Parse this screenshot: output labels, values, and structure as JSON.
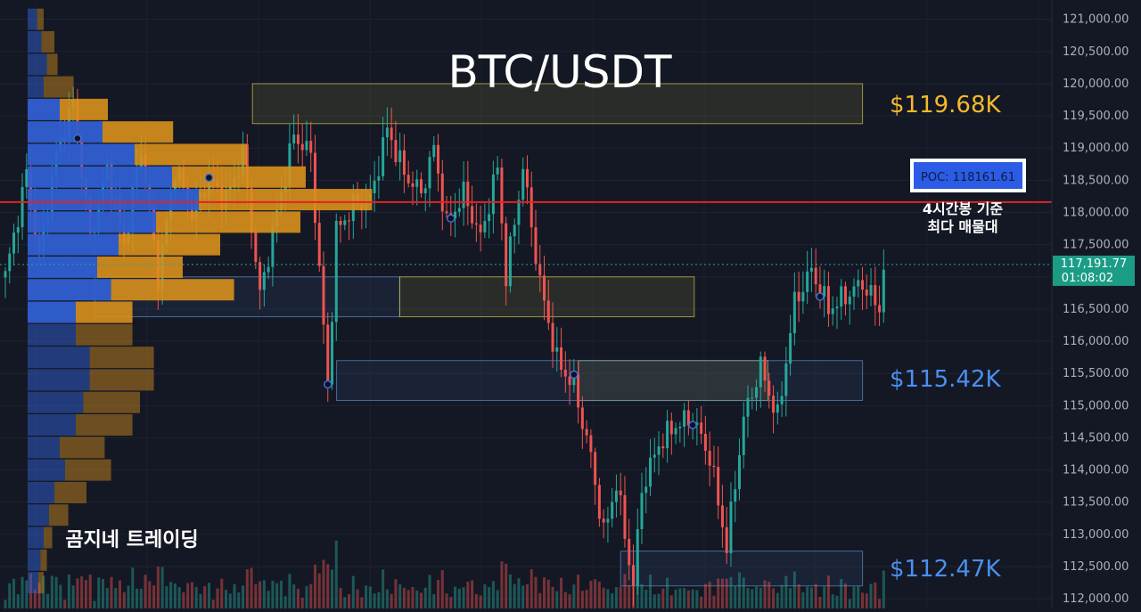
{
  "title": "BTC/USDT",
  "watermark": "곰지네 트레이딩",
  "poc": {
    "label": "POC: 118161.61",
    "value": 118161.61,
    "note_line1": "4시간봉 기준",
    "note_line2": "최다 매물대"
  },
  "current_price": {
    "value": 117191.77,
    "label": "117,191.77",
    "countdown": "01:08:02"
  },
  "levels": [
    {
      "label": "$119.68K",
      "value": 119680,
      "color": "#f5b82e"
    },
    {
      "label": "$115.42K",
      "value": 115420,
      "color": "#4c8ff0"
    },
    {
      "label": "$112.47K",
      "value": 112470,
      "color": "#4c8ff0"
    }
  ],
  "zones": [
    {
      "kind": "supply",
      "y_top": 120000,
      "y_bottom": 119380,
      "x_start": 0.24,
      "x_end": 0.82
    },
    {
      "kind": "demand",
      "y_top": 117000,
      "y_bottom": 116380,
      "x_start": 0.09,
      "x_end": 0.38
    },
    {
      "kind": "supply",
      "y_top": 117000,
      "y_bottom": 116380,
      "x_start": 0.38,
      "x_end": 0.66
    },
    {
      "kind": "supply",
      "y_top": 115700,
      "y_bottom": 115080,
      "x_start": 0.55,
      "x_end": 0.73
    },
    {
      "kind": "demand",
      "y_top": 115700,
      "y_bottom": 115080,
      "x_start": 0.32,
      "x_end": 0.82
    },
    {
      "kind": "demand",
      "y_top": 112740,
      "y_bottom": 112200,
      "x_start": 0.59,
      "x_end": 0.82
    }
  ],
  "colors": {
    "bull": "#26a69a",
    "bear": "#ef5350",
    "poc_line": "#e02424",
    "profile_blue": "#2f5fd1",
    "profile_orange": "#d8901c",
    "background": "#141824"
  },
  "chart_data": {
    "type": "candlestick",
    "title": "BTC/USDT",
    "y_axis": {
      "ylim": [
        111850,
        121300
      ],
      "ticks": [
        121000,
        120500,
        120000,
        119500,
        119000,
        118500,
        118000,
        117500,
        117000,
        116500,
        116000,
        115500,
        115000,
        114500,
        114000,
        113500,
        113000,
        112500,
        112000
      ],
      "tick_labels": [
        "121,000.00",
        "120,500.00",
        "120,000.00",
        "119,500.00",
        "119,000.00",
        "118,500.00",
        "118,000.00",
        "117,500.00",
        "117,000.00",
        "116,500.00",
        "116,000.00",
        "115,500.00",
        "115,000.00",
        "114,500.00",
        "114,000.00",
        "113,500.00",
        "113,000.00",
        "112,500.00",
        "112,000.00"
      ]
    },
    "anchors": [
      [
        0,
        117000
      ],
      [
        5,
        118600
      ],
      [
        8,
        117300
      ],
      [
        12,
        118900
      ],
      [
        16,
        119700
      ],
      [
        20,
        117600
      ],
      [
        24,
        118700
      ],
      [
        28,
        117500
      ],
      [
        32,
        119000
      ],
      [
        36,
        117000
      ],
      [
        40,
        118700
      ],
      [
        44,
        118000
      ],
      [
        48,
        118500
      ],
      [
        52,
        118200
      ],
      [
        56,
        118900
      ],
      [
        60,
        116700
      ],
      [
        64,
        118000
      ],
      [
        68,
        119200
      ],
      [
        72,
        118900
      ],
      [
        76,
        115300
      ],
      [
        78,
        117700
      ],
      [
        82,
        118100
      ],
      [
        86,
        118200
      ],
      [
        90,
        119300
      ],
      [
        94,
        118600
      ],
      [
        98,
        118300
      ],
      [
        101,
        119000
      ],
      [
        104,
        117800
      ],
      [
        108,
        118300
      ],
      [
        112,
        117600
      ],
      [
        116,
        118700
      ],
      [
        118,
        117000
      ],
      [
        122,
        118700
      ],
      [
        126,
        116900
      ],
      [
        130,
        115700
      ],
      [
        134,
        115300
      ],
      [
        138,
        114200
      ],
      [
        141,
        113000
      ],
      [
        144,
        113800
      ],
      [
        148,
        112200
      ],
      [
        150,
        113700
      ],
      [
        154,
        114400
      ],
      [
        158,
        114700
      ],
      [
        162,
        114800
      ],
      [
        166,
        114200
      ],
      [
        170,
        112800
      ],
      [
        174,
        114800
      ],
      [
        178,
        115600
      ],
      [
        182,
        114800
      ],
      [
        186,
        116600
      ],
      [
        190,
        117100
      ],
      [
        194,
        116500
      ],
      [
        198,
        116700
      ],
      [
        202,
        116900
      ],
      [
        206,
        116500
      ],
      [
        207,
        117192
      ]
    ],
    "volume_profile": [
      {
        "price": 121000,
        "buy": 9,
        "sell": 6
      },
      {
        "price": 120650,
        "buy": 13,
        "sell": 12
      },
      {
        "price": 120300,
        "buy": 18,
        "sell": 10
      },
      {
        "price": 119950,
        "buy": 15,
        "sell": 28
      },
      {
        "price": 119600,
        "buy": 30,
        "sell": 45
      },
      {
        "price": 119250,
        "buy": 70,
        "sell": 66
      },
      {
        "price": 118900,
        "buy": 100,
        "sell": 105
      },
      {
        "price": 118550,
        "buy": 135,
        "sell": 125
      },
      {
        "price": 118200,
        "buy": 160,
        "sell": 162
      },
      {
        "price": 117850,
        "buy": 120,
        "sell": 135
      },
      {
        "price": 117500,
        "buy": 85,
        "sell": 95
      },
      {
        "price": 117150,
        "buy": 65,
        "sell": 80
      },
      {
        "price": 116800,
        "buy": 78,
        "sell": 115
      },
      {
        "price": 116450,
        "buy": 45,
        "sell": 53
      },
      {
        "price": 116100,
        "buy": 45,
        "sell": 53
      },
      {
        "price": 115750,
        "buy": 58,
        "sell": 60
      },
      {
        "price": 115400,
        "buy": 58,
        "sell": 60
      },
      {
        "price": 115050,
        "buy": 52,
        "sell": 53
      },
      {
        "price": 114700,
        "buy": 45,
        "sell": 53
      },
      {
        "price": 114350,
        "buy": 30,
        "sell": 42
      },
      {
        "price": 114000,
        "buy": 35,
        "sell": 43
      },
      {
        "price": 113650,
        "buy": 25,
        "sell": 30
      },
      {
        "price": 113300,
        "buy": 20,
        "sell": 18
      },
      {
        "price": 112950,
        "buy": 15,
        "sell": 8
      },
      {
        "price": 112600,
        "buy": 12,
        "sell": 6
      },
      {
        "price": 112250,
        "buy": 10,
        "sell": 5
      }
    ]
  }
}
